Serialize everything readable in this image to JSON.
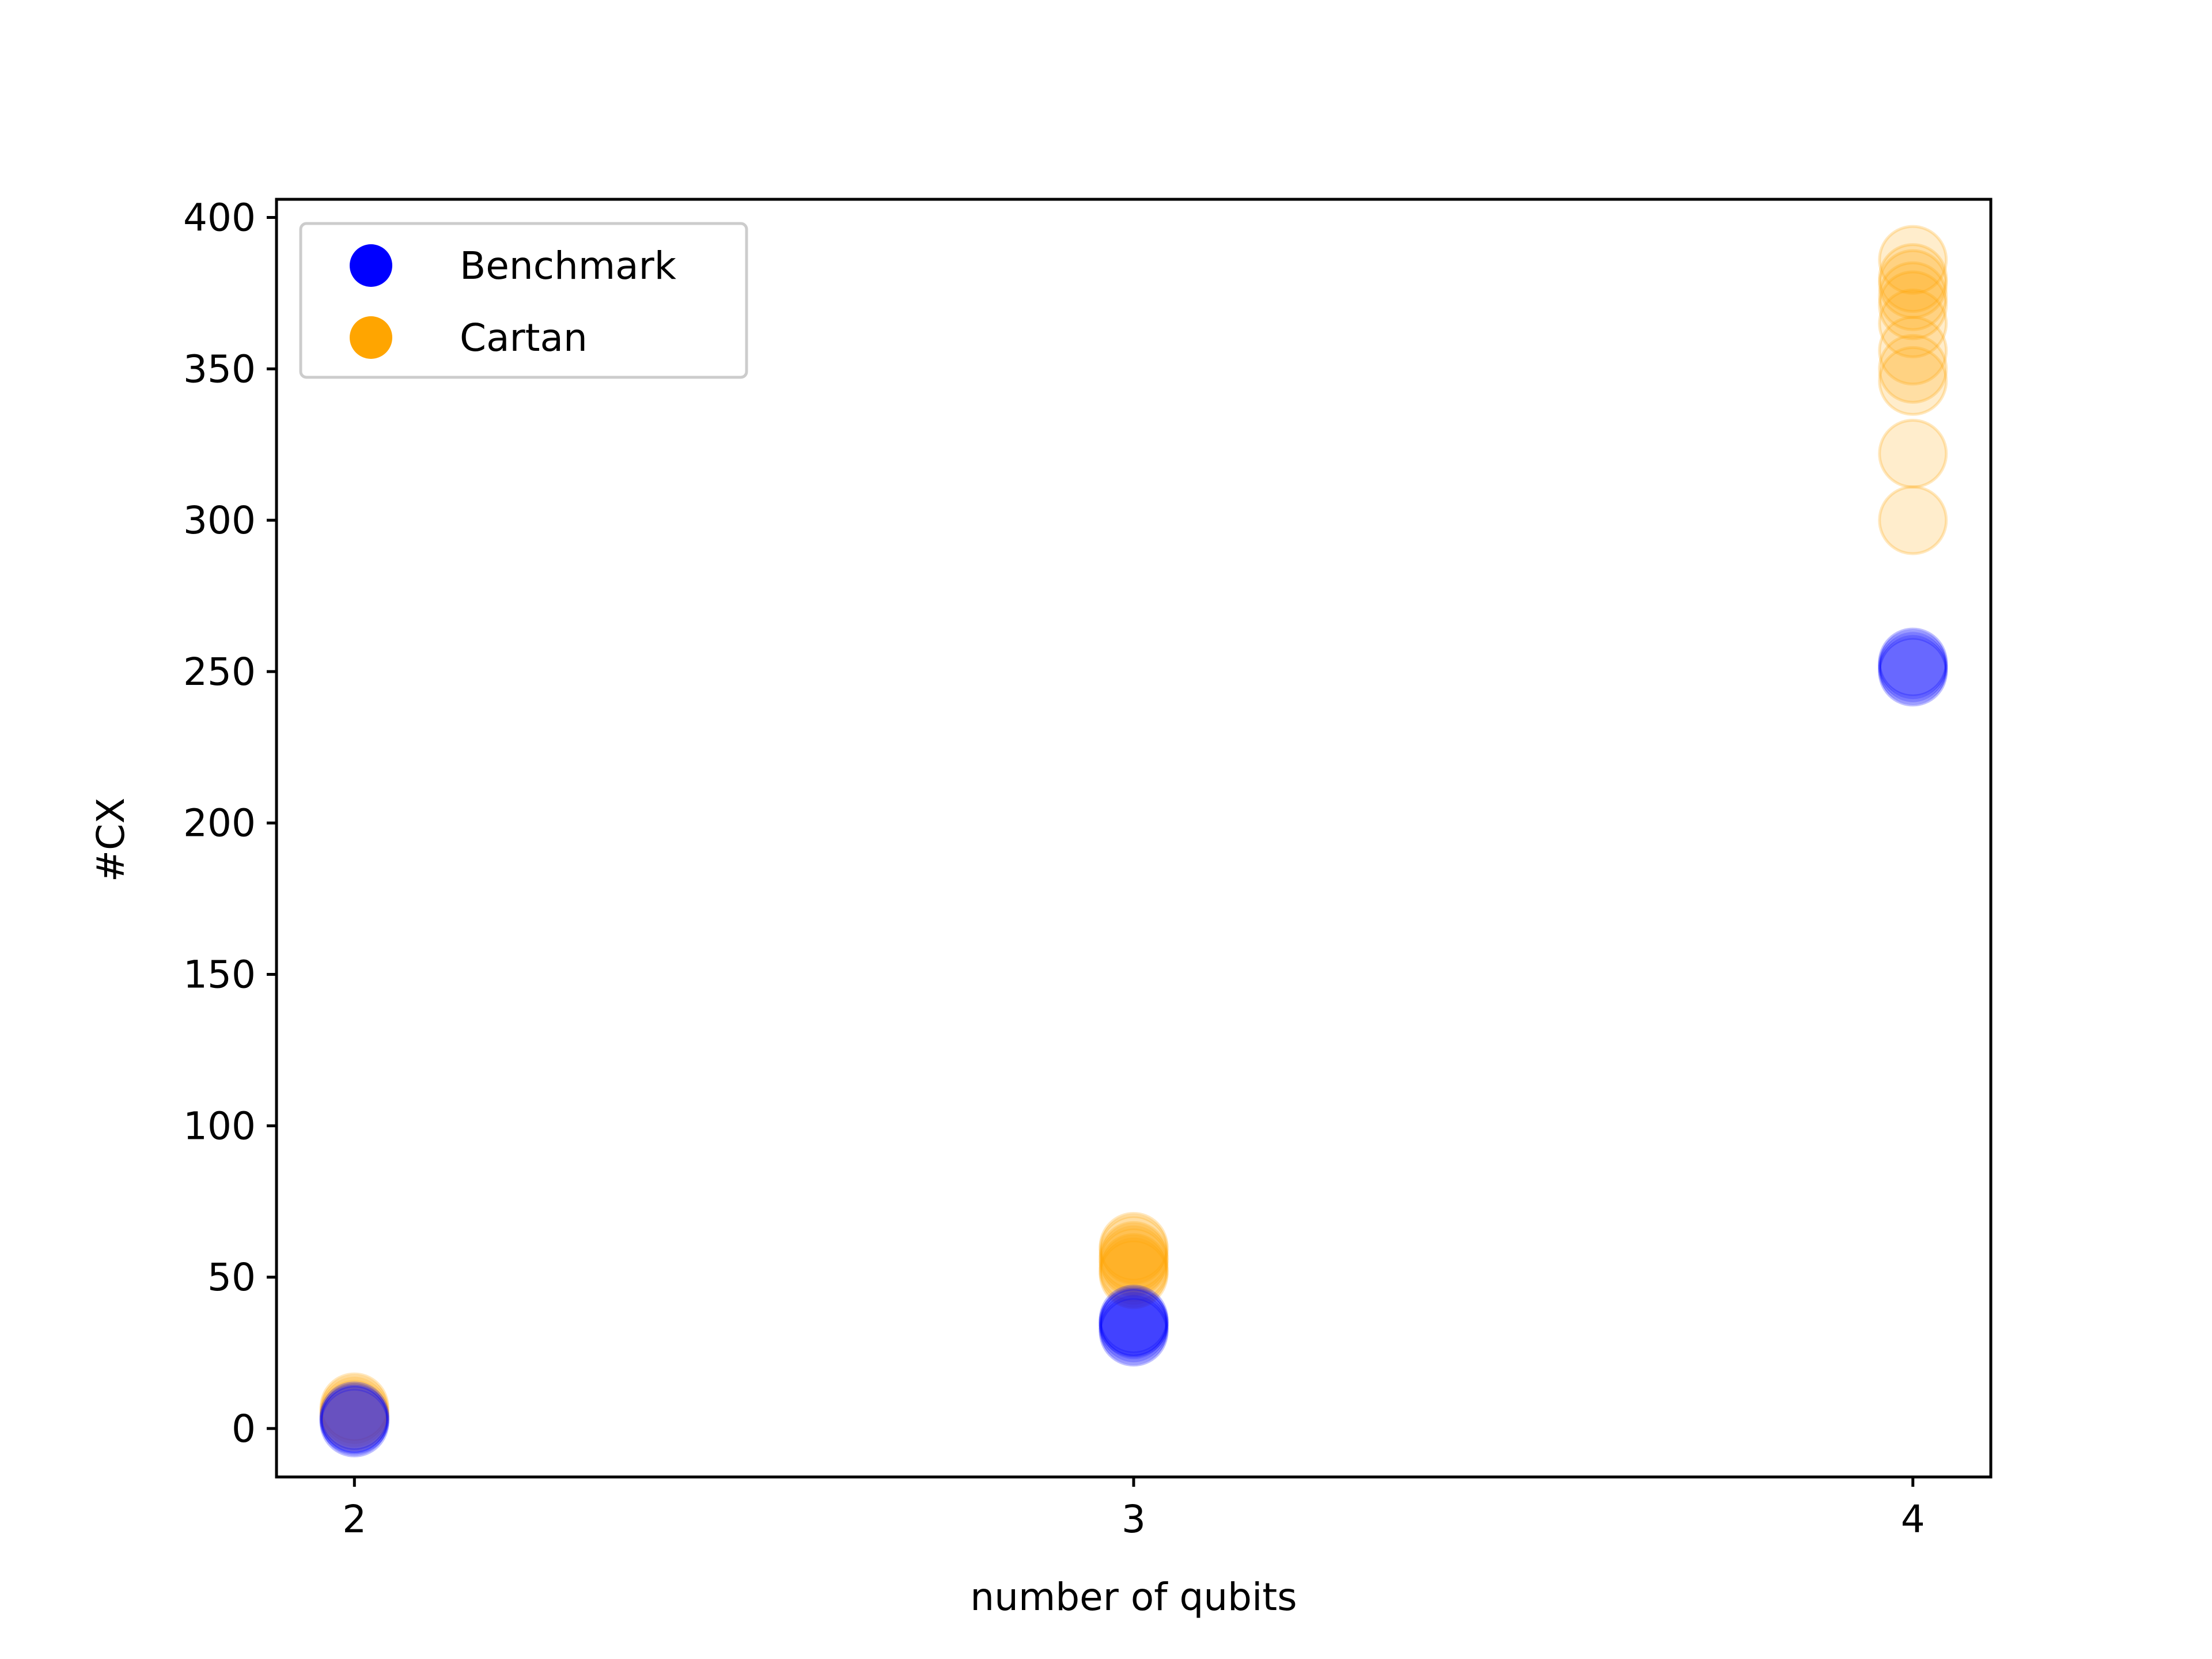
{
  "chart_data": {
    "type": "scatter",
    "title": "",
    "xlabel": "number of qubits",
    "ylabel": "#CX",
    "xlim": [
      1.9,
      4.1
    ],
    "ylim": [
      -16,
      406
    ],
    "x_ticks": [
      2,
      3,
      4
    ],
    "y_ticks": [
      0,
      50,
      100,
      150,
      200,
      250,
      300,
      350,
      400
    ],
    "grid": false,
    "legend": {
      "position": "top-left",
      "entries": [
        "Benchmark",
        "Cartan"
      ]
    },
    "series": [
      {
        "name": "Cartan",
        "color": "#ffa500",
        "points": [
          {
            "x": 2,
            "y": 6
          },
          {
            "x": 2,
            "y": 5
          },
          {
            "x": 2,
            "y": 7
          },
          {
            "x": 2,
            "y": 4
          },
          {
            "x": 3,
            "y": 51
          },
          {
            "x": 3,
            "y": 53
          },
          {
            "x": 3,
            "y": 55
          },
          {
            "x": 3,
            "y": 57
          },
          {
            "x": 3,
            "y": 59
          },
          {
            "x": 3,
            "y": 52
          },
          {
            "x": 3,
            "y": 56
          },
          {
            "x": 3,
            "y": 60
          },
          {
            "x": 4,
            "y": 300
          },
          {
            "x": 4,
            "y": 322
          },
          {
            "x": 4,
            "y": 346
          },
          {
            "x": 4,
            "y": 350
          },
          {
            "x": 4,
            "y": 356
          },
          {
            "x": 4,
            "y": 365
          },
          {
            "x": 4,
            "y": 371
          },
          {
            "x": 4,
            "y": 374
          },
          {
            "x": 4,
            "y": 378
          },
          {
            "x": 4,
            "y": 380
          },
          {
            "x": 4,
            "y": 386
          }
        ]
      },
      {
        "name": "Benchmark",
        "color": "#0000ff",
        "points": [
          {
            "x": 2,
            "y": 3
          },
          {
            "x": 2,
            "y": 3
          },
          {
            "x": 2,
            "y": 4
          },
          {
            "x": 2,
            "y": 2
          },
          {
            "x": 3,
            "y": 32
          },
          {
            "x": 3,
            "y": 34
          },
          {
            "x": 3,
            "y": 35
          },
          {
            "x": 3,
            "y": 36
          },
          {
            "x": 3,
            "y": 33
          },
          {
            "x": 3,
            "y": 35
          },
          {
            "x": 4,
            "y": 250
          },
          {
            "x": 4,
            "y": 252
          },
          {
            "x": 4,
            "y": 253
          },
          {
            "x": 4,
            "y": 251
          }
        ]
      }
    ]
  }
}
